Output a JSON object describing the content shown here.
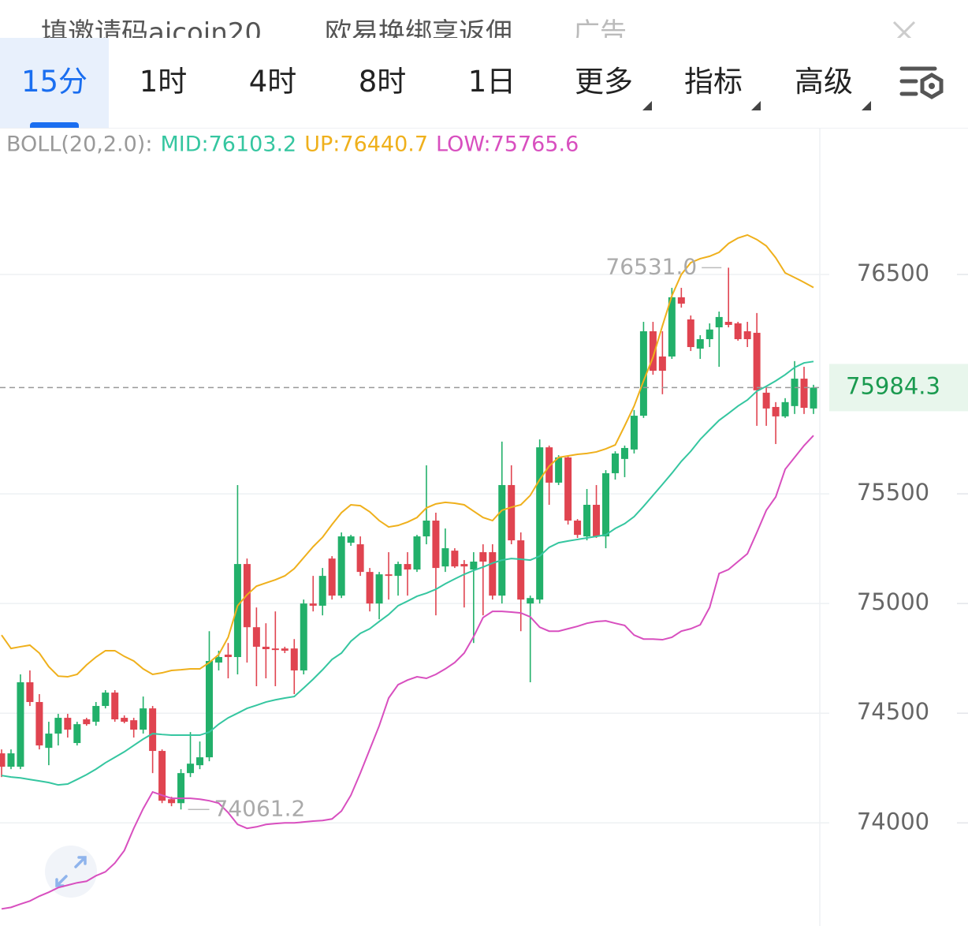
{
  "header": {
    "ad_text": [
      "填邀请码aicoin20",
      "欧易换绑享返佣"
    ],
    "ad_label": "广告"
  },
  "tabs": [
    "15分",
    "1时",
    "4时",
    "8时",
    "1日",
    "更多",
    "指标",
    "高级"
  ],
  "chart_data": {
    "type": "candlestick",
    "indicator": "BOLL(20,2.0):",
    "up_color": "#22b06a",
    "down_color": "#e04450",
    "ylim": [
      73530,
      77165
    ],
    "yticks": [
      74000,
      74500,
      75000,
      75500,
      76500
    ],
    "grid": true,
    "last_price": 75984.3,
    "high_mark": {
      "value": 76531,
      "label": "76531.0"
    },
    "low_mark": 74061.2,
    "open": [
      74317,
      74256,
      74256,
      74641,
      74551,
      74342,
      74407,
      74479,
      74364,
      74472,
      74461,
      74533,
      74594,
      74479,
      74468,
      74425,
      74522,
      74328,
      74108,
      74090,
      74227,
      74263,
      74299,
      74731,
      74767,
      74756,
      75180,
      74892,
      74803,
      74795,
      74795,
      74795,
      74695,
      75000,
      74990,
      75205,
      75036,
      75277,
      75270,
      75144,
      75000,
      75133,
      75126,
      75180,
      75155,
      75306,
      75378,
      75169,
      75241,
      75180,
      75155,
      75234,
      75234,
      75036,
      75540,
      75288,
      75000,
      75018,
      75712,
      75551,
      75666,
      75378,
      75306,
      75450,
      75306,
      75594,
      75659,
      75702,
      75856,
      76241,
      76126,
      76126,
      76396,
      76295,
      76162,
      76205,
      76259,
      76284,
      76277,
      76241,
      76234,
      75961,
      75896,
      75853,
      75900,
      76025,
      75889
    ],
    "high": [
      74335,
      74335,
      74677,
      74695,
      74587,
      74461,
      74497,
      74497,
      74461,
      74479,
      74551,
      74605,
      74605,
      74490,
      74479,
      74576,
      74533,
      74335,
      74119,
      74245,
      74414,
      74371,
      74874,
      74785,
      74820,
      75540,
      75205,
      74982,
      74910,
      74964,
      74803,
      74838,
      75018,
      75126,
      75162,
      75216,
      75324,
      75313,
      75306,
      75162,
      75144,
      75234,
      75191,
      75234,
      75313,
      75630,
      75414,
      75342,
      75252,
      75198,
      75234,
      75270,
      75270,
      75738,
      75630,
      75324,
      75036,
      75748,
      75720,
      75676,
      75676,
      75385,
      75522,
      75540,
      75608,
      75694,
      75720,
      75882,
      76284,
      76284,
      76241,
      76439,
      76439,
      76313,
      76223,
      76277,
      76331,
      76531,
      76284,
      76284,
      76324,
      75990,
      75918,
      75936,
      76105,
      76079,
      75997
    ],
    "low": [
      74209,
      74245,
      74245,
      74533,
      74335,
      74263,
      74353,
      74389,
      74353,
      74443,
      74443,
      74522,
      74461,
      74454,
      74389,
      74407,
      74227,
      74090,
      74076,
      74061.2,
      74209,
      74245,
      74281,
      74695,
      74659,
      74677,
      74731,
      74623,
      74659,
      74623,
      74774,
      74587,
      74677,
      74964,
      74946,
      75018,
      75025,
      75263,
      75126,
      74964,
      74928,
      75018,
      75036,
      75036,
      75144,
      75270,
      74946,
      75144,
      75162,
      74982,
      74820,
      74946,
      75018,
      75000,
      75270,
      74874,
      74641,
      75000,
      75450,
      75540,
      75360,
      75299,
      75288,
      75299,
      75252,
      75565,
      75576,
      75684,
      75846,
      76043,
      75954,
      76115,
      76349,
      76151,
      76115,
      76169,
      76079,
      76259,
      76198,
      76169,
      75810,
      75810,
      75727,
      75846,
      75864,
      75864,
      75864
    ],
    "close": [
      74256,
      74317,
      74641,
      74551,
      74353,
      74407,
      74479,
      74425,
      74450,
      74450,
      74533,
      74594,
      74472,
      74461,
      74425,
      74522,
      74328,
      74101,
      74090,
      74227,
      74270,
      74299,
      74738,
      74756,
      74756,
      75180,
      74892,
      74803,
      74792,
      74788,
      74785,
      74695,
      75000,
      74990,
      75126,
      75036,
      75306,
      75306,
      75144,
      75000,
      75133,
      75126,
      75180,
      75155,
      75306,
      75378,
      75162,
      75252,
      75169,
      75169,
      75191,
      75191,
      75036,
      75540,
      75288,
      75018,
      75025,
      75712,
      75551,
      75666,
      75378,
      75313,
      75450,
      75306,
      75594,
      75684,
      75709,
      75856,
      76241,
      76061,
      76061,
      76396,
      76367,
      76169,
      76205,
      76249,
      76306,
      76270,
      76205,
      76205,
      75972,
      75889,
      75853,
      75918,
      76025,
      75892,
      75984.3
    ],
    "series": [
      {
        "name": "MID:76103.2",
        "color": "#35c6a0",
        "values": [
          74216,
          74209,
          74205,
          74198,
          74191,
          74184,
          74173,
          74177,
          74198,
          74220,
          74245,
          74274,
          74299,
          74324,
          74353,
          74382,
          74407,
          74403,
          74400,
          74400,
          74400,
          74400,
          74414,
          74450,
          74479,
          74500,
          74522,
          74536,
          74551,
          74561,
          74569,
          74576,
          74615,
          74655,
          74698,
          74745,
          74774,
          74828,
          74864,
          74885,
          74918,
          74950,
          74990,
          75011,
          75033,
          75047,
          75065,
          75090,
          75112,
          75133,
          75151,
          75166,
          75184,
          75198,
          75205,
          75202,
          75198,
          75216,
          75256,
          75277,
          75285,
          75292,
          75299,
          75306,
          75313,
          75342,
          75364,
          75396,
          75443,
          75493,
          75543,
          75594,
          75648,
          75694,
          75748,
          75792,
          75835,
          75867,
          75900,
          75928,
          75968,
          75990,
          76015,
          76043,
          76076,
          76097,
          76103.2
        ]
      },
      {
        "name": "UP:76440.7",
        "color": "#efb01c",
        "values": [
          74856,
          74795,
          74803,
          74810,
          74774,
          74712,
          74669,
          74666,
          74677,
          74720,
          74756,
          74785,
          74785,
          74759,
          74738,
          74702,
          74677,
          74684,
          74695,
          74698,
          74702,
          74702,
          74731,
          74767,
          74846,
          74990,
          75040,
          75079,
          75094,
          75108,
          75126,
          75159,
          75209,
          75259,
          75302,
          75360,
          75414,
          75450,
          75446,
          75418,
          75378,
          75349,
          75356,
          75371,
          75392,
          75436,
          75454,
          75461,
          75457,
          75450,
          75421,
          75392,
          75378,
          75425,
          75439,
          75450,
          75493,
          75565,
          75626,
          75666,
          75673,
          75680,
          75684,
          75691,
          75705,
          75723,
          75810,
          75900,
          76015,
          76123,
          76266,
          76403,
          76500,
          76554,
          76572,
          76583,
          76601,
          76641,
          76666,
          76680,
          76659,
          76630,
          76576,
          76507,
          76486,
          76464,
          76440.7
        ]
      },
      {
        "name": "LOW:75765.6",
        "color": "#d84fbf",
        "values": [
          73608,
          73615,
          73630,
          73644,
          73666,
          73684,
          73705,
          73716,
          73727,
          73734,
          73759,
          73777,
          73817,
          73874,
          73975,
          74065,
          74141,
          74126,
          74112,
          74112,
          74112,
          74108,
          74101,
          74090,
          74047,
          73993,
          73975,
          73982,
          73993,
          73997,
          74000,
          74000,
          74004,
          74008,
          74011,
          74018,
          74054,
          74126,
          74227,
          74335,
          74443,
          74569,
          74630,
          74651,
          74666,
          74659,
          74677,
          74702,
          74731,
          74774,
          74849,
          74936,
          74964,
          74964,
          74961,
          74957,
          74939,
          74892,
          74874,
          74874,
          74885,
          74896,
          74910,
          74918,
          74921,
          74910,
          74900,
          74856,
          74838,
          74838,
          74835,
          74846,
          74874,
          74885,
          74903,
          74982,
          75137,
          75155,
          75191,
          75227,
          75324,
          75425,
          75486,
          75612,
          75666,
          75720,
          75765.6
        ]
      }
    ]
  }
}
